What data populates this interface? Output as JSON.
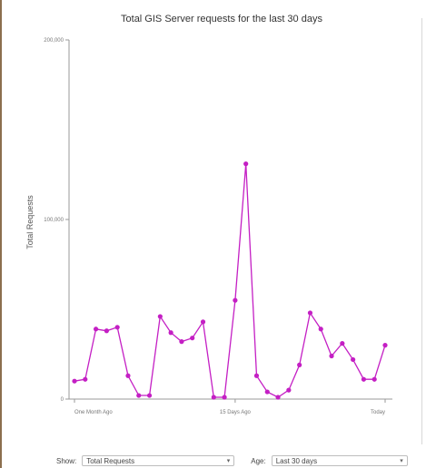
{
  "chart_data": {
    "type": "line",
    "title": "Total GIS Server requests for the last 30 days",
    "ylabel": "Total Requests",
    "xlabel": "",
    "ylim": [
      0,
      200000
    ],
    "y_ticks": [
      {
        "value": 0,
        "label": "0"
      },
      {
        "value": 100000,
        "label": "100,000"
      },
      {
        "value": 200000,
        "label": "200,000"
      }
    ],
    "x_ticks": [
      {
        "index": 0,
        "label": "One Month Ago"
      },
      {
        "index": 15,
        "label": "15 Days Ago"
      },
      {
        "index": 29,
        "label": "Today"
      }
    ],
    "series": [
      {
        "values": [
          10000,
          11000,
          39000,
          38000,
          40000,
          13000,
          2000,
          2000,
          46000,
          37000,
          32000,
          34000,
          43000,
          1000,
          1000,
          55000,
          131000,
          13000,
          4000,
          1000,
          5000,
          19000,
          48000,
          39000,
          24000,
          31000,
          22000,
          11000,
          11000,
          30000
        ],
        "color": "#c41fc4"
      }
    ],
    "grid": false,
    "legend": "none"
  },
  "controls": {
    "show_label": "Show:",
    "show_value": "Total Requests",
    "age_label": "Age:",
    "age_value": "Last 30 days"
  }
}
